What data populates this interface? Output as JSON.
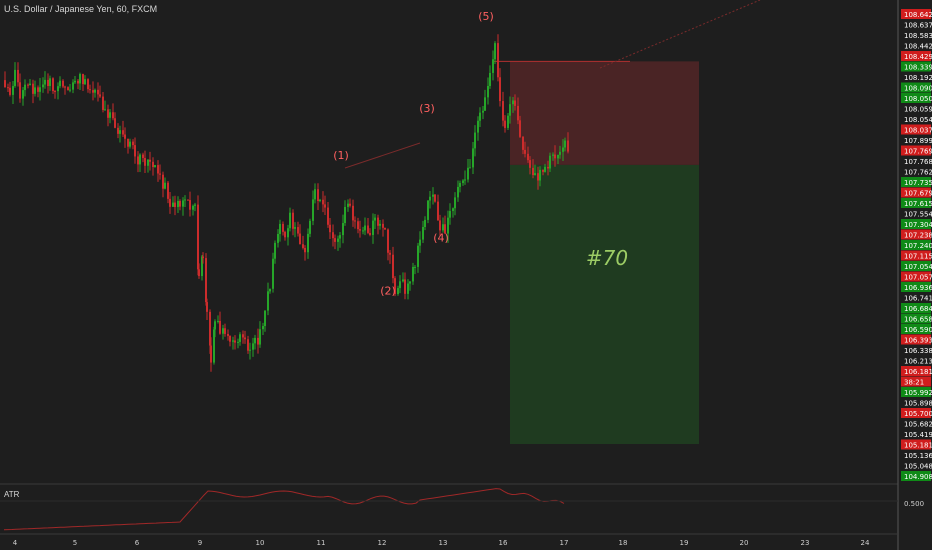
{
  "header": {
    "title": "U.S. Dollar / Japanese Yen, 60, FXCM"
  },
  "atr": {
    "label": "ATR",
    "axis_value": "0.500"
  },
  "trade": {
    "label": "#70"
  },
  "waves": [
    "(1)",
    "(2)",
    "(3)",
    "(4)",
    "(5)"
  ],
  "price_labels": [
    {
      "text": "108.642",
      "kind": "red"
    },
    {
      "text": "108.637",
      "kind": "gray"
    },
    {
      "text": "108.583",
      "kind": "gray"
    },
    {
      "text": "108.442",
      "kind": "gray"
    },
    {
      "text": "108.429",
      "kind": "red"
    },
    {
      "text": "108.339",
      "kind": "green"
    },
    {
      "text": "108.192",
      "kind": "gray"
    },
    {
      "text": "108.090",
      "kind": "green"
    },
    {
      "text": "108.050",
      "kind": "green"
    },
    {
      "text": "108.059",
      "kind": "gray"
    },
    {
      "text": "108.054",
      "kind": "gray"
    },
    {
      "text": "108.037",
      "kind": "red"
    },
    {
      "text": "107.899",
      "kind": "gray"
    },
    {
      "text": "107.769",
      "kind": "red"
    },
    {
      "text": "107.768",
      "kind": "gray"
    },
    {
      "text": "107.762",
      "kind": "gray"
    },
    {
      "text": "107.735",
      "kind": "green"
    },
    {
      "text": "107.679",
      "kind": "red"
    },
    {
      "text": "107.615",
      "kind": "green"
    },
    {
      "text": "107.554",
      "kind": "gray"
    },
    {
      "text": "107.304",
      "kind": "green"
    },
    {
      "text": "107.238",
      "kind": "red"
    },
    {
      "text": "107.240",
      "kind": "green"
    },
    {
      "text": "107.115",
      "kind": "red"
    },
    {
      "text": "107.054",
      "kind": "green"
    },
    {
      "text": "107.057",
      "kind": "red"
    },
    {
      "text": "106.936",
      "kind": "green"
    },
    {
      "text": "106.741",
      "kind": "gray"
    },
    {
      "text": "106.684",
      "kind": "green"
    },
    {
      "text": "106.658",
      "kind": "green"
    },
    {
      "text": "106.590",
      "kind": "green"
    },
    {
      "text": "106.393",
      "kind": "red"
    },
    {
      "text": "106.338",
      "kind": "gray"
    },
    {
      "text": "106.213",
      "kind": "gray"
    },
    {
      "text": "106.181",
      "kind": "red"
    },
    {
      "text": "38:21",
      "kind": "red"
    },
    {
      "text": "105.992",
      "kind": "green"
    },
    {
      "text": "105.898",
      "kind": "gray"
    },
    {
      "text": "105.700",
      "kind": "red"
    },
    {
      "text": "105.682",
      "kind": "gray"
    },
    {
      "text": "105.419",
      "kind": "gray"
    },
    {
      "text": "105.181",
      "kind": "red"
    },
    {
      "text": "105.136",
      "kind": "gray"
    },
    {
      "text": "105.048",
      "kind": "gray"
    },
    {
      "text": "104.908",
      "kind": "green"
    }
  ],
  "x_ticks": [
    "4",
    "5",
    "6",
    "9",
    "10",
    "11",
    "12",
    "13",
    "16",
    "17",
    "18",
    "19",
    "20",
    "23",
    "24"
  ],
  "colors": {
    "background": "#1e1e1e",
    "up": "#26a629",
    "down": "#cc2c2c",
    "green_label": "#0f8a17",
    "red_label": "#d01d1d",
    "stop_zone": "#4a2425",
    "target_zone": "#1f3b20",
    "wave_text": "#ff6060",
    "trade_text": "#9ccc65",
    "atr_line": "#a02828"
  },
  "chart_data": {
    "type": "candlestick",
    "title": "U.S. Dollar / Japanese Yen, 60, FXCM",
    "ylim": [
      104.85,
      108.95
    ],
    "price_ticks": [
      108.642,
      108.637,
      108.583,
      108.442,
      108.429,
      108.339,
      108.192,
      108.09,
      108.05,
      108.059,
      108.054,
      108.037,
      107.899,
      107.769,
      107.768,
      107.762,
      107.735,
      107.679,
      107.615,
      107.554,
      107.304,
      107.238,
      107.24,
      107.115,
      107.054,
      107.057,
      106.936,
      106.741,
      106.684,
      106.658,
      106.59,
      106.393,
      106.338,
      106.213,
      106.181,
      105.992,
      105.898,
      105.7,
      105.682,
      105.419,
      105.181,
      105.136,
      105.048,
      104.908
    ],
    "x_tick_labels": [
      "4",
      "5",
      "6",
      "9",
      "10",
      "11",
      "12",
      "13",
      "16",
      "17",
      "18",
      "19",
      "20",
      "23",
      "24"
    ],
    "close_path": [
      [
        0,
        108.27
      ],
      [
        5,
        108.15
      ],
      [
        10,
        108.3
      ],
      [
        15,
        108.12
      ],
      [
        20,
        108.2
      ],
      [
        25,
        108.26
      ],
      [
        30,
        108.15
      ],
      [
        35,
        108.2
      ],
      [
        40,
        108.26
      ],
      [
        45,
        108.25
      ],
      [
        50,
        108.2
      ],
      [
        55,
        108.22
      ],
      [
        60,
        108.25
      ],
      [
        65,
        108.24
      ],
      [
        70,
        108.28
      ],
      [
        75,
        108.31
      ],
      [
        80,
        108.25
      ],
      [
        85,
        108.2
      ],
      [
        90,
        108.15
      ],
      [
        95,
        108.1
      ],
      [
        100,
        108.05
      ],
      [
        105,
        107.95
      ],
      [
        110,
        107.9
      ],
      [
        115,
        107.85
      ],
      [
        120,
        107.8
      ],
      [
        125,
        107.72
      ],
      [
        130,
        107.63
      ],
      [
        135,
        107.6
      ],
      [
        140,
        107.55
      ],
      [
        145,
        107.55
      ],
      [
        150,
        107.5
      ],
      [
        155,
        107.42
      ],
      [
        160,
        107.35
      ],
      [
        165,
        107.2
      ],
      [
        170,
        107.25
      ],
      [
        175,
        107.18
      ],
      [
        180,
        107.2
      ],
      [
        185,
        107.22
      ],
      [
        190,
        107.2
      ],
      [
        194,
        106.55
      ],
      [
        198,
        106.8
      ],
      [
        202,
        106.3
      ],
      [
        206,
        105.9
      ],
      [
        210,
        106.25
      ],
      [
        215,
        106.15
      ],
      [
        220,
        106.1
      ],
      [
        225,
        106.05
      ],
      [
        230,
        106.0
      ],
      [
        235,
        106.1
      ],
      [
        240,
        106.05
      ],
      [
        245,
        106.0
      ],
      [
        250,
        106.05
      ],
      [
        255,
        106.1
      ],
      [
        260,
        106.3
      ],
      [
        265,
        106.5
      ],
      [
        270,
        106.9
      ],
      [
        275,
        107.05
      ],
      [
        280,
        106.95
      ],
      [
        285,
        107.1
      ],
      [
        290,
        107.0
      ],
      [
        295,
        106.9
      ],
      [
        300,
        106.85
      ],
      [
        305,
        107.05
      ],
      [
        310,
        107.35
      ],
      [
        315,
        107.2
      ],
      [
        320,
        107.15
      ],
      [
        325,
        107.0
      ],
      [
        330,
        106.85
      ],
      [
        335,
        106.9
      ],
      [
        340,
        107.15
      ],
      [
        345,
        107.2
      ],
      [
        350,
        107.05
      ],
      [
        355,
        107.0
      ],
      [
        360,
        107.05
      ],
      [
        365,
        107.0
      ],
      [
        370,
        107.05
      ],
      [
        375,
        107.0
      ],
      [
        380,
        106.95
      ],
      [
        385,
        106.75
      ],
      [
        390,
        106.45
      ],
      [
        395,
        106.6
      ],
      [
        400,
        106.5
      ],
      [
        405,
        106.55
      ],
      [
        410,
        106.7
      ],
      [
        415,
        106.9
      ],
      [
        420,
        107.1
      ],
      [
        425,
        107.3
      ],
      [
        430,
        107.2
      ],
      [
        435,
        107.05
      ],
      [
        440,
        107.0
      ],
      [
        445,
        107.1
      ],
      [
        450,
        107.25
      ],
      [
        455,
        107.4
      ],
      [
        460,
        107.45
      ],
      [
        465,
        107.55
      ],
      [
        470,
        107.8
      ],
      [
        475,
        107.95
      ],
      [
        480,
        108.1
      ],
      [
        485,
        108.3
      ],
      [
        490,
        108.55
      ],
      [
        495,
        108.1
      ],
      [
        500,
        107.85
      ],
      [
        505,
        108.1
      ],
      [
        510,
        108.0
      ],
      [
        515,
        107.8
      ],
      [
        520,
        107.65
      ],
      [
        525,
        107.55
      ],
      [
        530,
        107.5
      ],
      [
        535,
        107.45
      ],
      [
        540,
        107.55
      ],
      [
        545,
        107.6
      ],
      [
        550,
        107.6
      ],
      [
        555,
        107.65
      ],
      [
        560,
        107.7
      ],
      [
        565,
        107.72
      ]
    ],
    "wave_labels": [
      {
        "label": "(1)",
        "price": 107.6
      },
      {
        "label": "(2)",
        "price": 106.45
      },
      {
        "label": "(3)",
        "price": 108.0
      },
      {
        "label": "(4)",
        "price": 106.9
      },
      {
        "label": "(5)",
        "price": 108.78
      }
    ],
    "trade": {
      "label": "#70",
      "entry": 107.55,
      "stop": 108.429,
      "target": 105.181
    },
    "atr": {
      "label": "ATR",
      "reference_value": 0.5
    }
  }
}
